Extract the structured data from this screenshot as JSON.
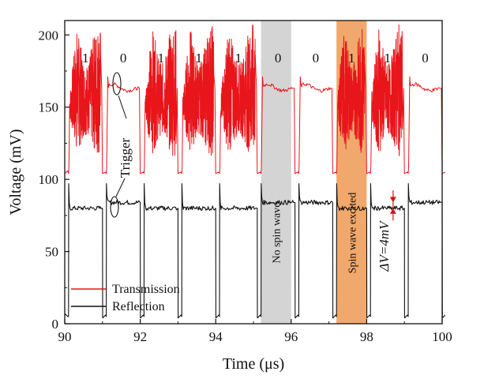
{
  "chart_data": {
    "type": "line",
    "title": "",
    "xlabel": "Time (μs)",
    "ylabel": "Voltage (mV)",
    "xlim": [
      90,
      100
    ],
    "ylim": [
      0,
      210
    ],
    "xticks": [
      90,
      92,
      94,
      96,
      98,
      100
    ],
    "yticks": [
      0,
      50,
      100,
      150,
      200
    ],
    "series": [
      {
        "name": "Transmission",
        "color": "#e8151b",
        "baseline_mV": 163,
        "low_mV": 104,
        "burst_max_mV": 208,
        "burst_min_mV": 116
      },
      {
        "name": "Reflection",
        "color": "#111111",
        "high_mV": 84,
        "low_with_spin_wave_mV": 80,
        "floor_mV": 3
      }
    ],
    "bits": [
      {
        "start": 90.1,
        "end": 91.0,
        "label": "1"
      },
      {
        "start": 91.1,
        "end": 92.0,
        "label": "0"
      },
      {
        "start": 92.1,
        "end": 93.0,
        "label": "1"
      },
      {
        "start": 93.1,
        "end": 94.0,
        "label": "1"
      },
      {
        "start": 94.1,
        "end": 95.1,
        "label": "1"
      },
      {
        "start": 95.2,
        "end": 96.1,
        "label": "0"
      },
      {
        "start": 96.2,
        "end": 97.1,
        "label": "0"
      },
      {
        "start": 97.2,
        "end": 98.0,
        "label": "1"
      },
      {
        "start": 98.1,
        "end": 99.0,
        "label": "1"
      },
      {
        "start": 99.1,
        "end": 100.0,
        "label": "0"
      }
    ],
    "shaded_regions": [
      {
        "x0": 95.2,
        "x1": 96.0,
        "color": "#d4d4d4",
        "label": "No spin wave"
      },
      {
        "x0": 97.2,
        "x1": 98.0,
        "color": "#f1a86c",
        "label": "Spin wave excited"
      }
    ],
    "annotations": {
      "trigger": "Trigger",
      "delta_v": "ΔV=4mV",
      "delta_v_x": 98.7
    },
    "legend": {
      "position": "bottom-left",
      "entries": [
        "Transmission",
        "Reflection"
      ]
    }
  }
}
